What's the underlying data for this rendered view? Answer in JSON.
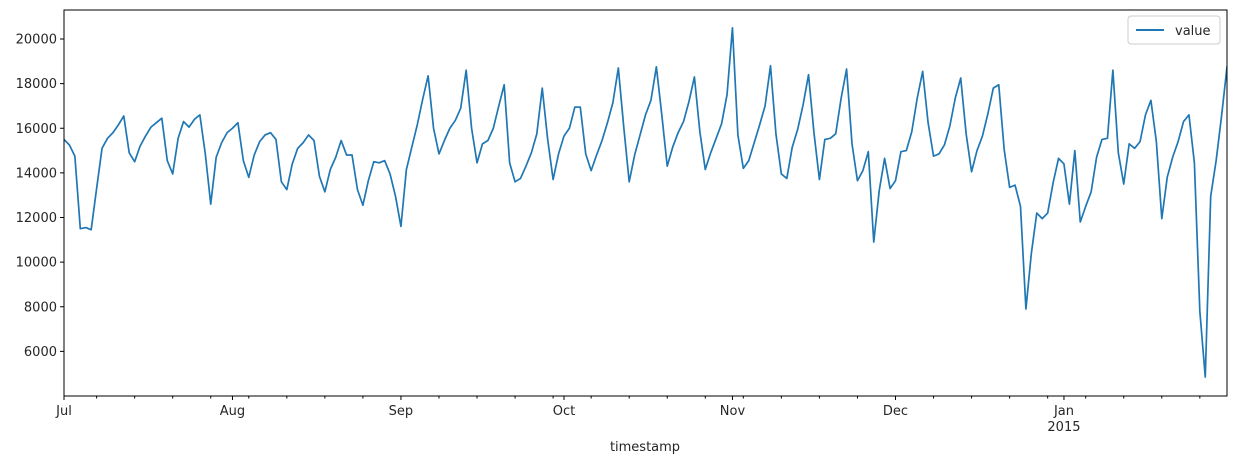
{
  "chart_data": {
    "type": "line",
    "xlabel": "timestamp",
    "ylabel": "",
    "ylim": [
      4000,
      21300
    ],
    "xlim": [
      "2014-07-01",
      "2015-01-31"
    ],
    "grid": false,
    "legend_position": "top-right",
    "line_color": "#1f77b4",
    "y_ticks": [
      6000,
      8000,
      10000,
      12000,
      14000,
      16000,
      18000,
      20000
    ],
    "x_major_ticks": [
      {
        "date": "2014-07-01",
        "label": "Jul",
        "sublabel": ""
      },
      {
        "date": "2014-08-01",
        "label": "Aug",
        "sublabel": ""
      },
      {
        "date": "2014-09-01",
        "label": "Sep",
        "sublabel": ""
      },
      {
        "date": "2014-10-01",
        "label": "Oct",
        "sublabel": ""
      },
      {
        "date": "2014-11-01",
        "label": "Nov",
        "sublabel": ""
      },
      {
        "date": "2014-12-01",
        "label": "Dec",
        "sublabel": ""
      },
      {
        "date": "2015-01-01",
        "label": "Jan",
        "sublabel": "2015"
      }
    ],
    "series": [
      {
        "name": "value",
        "color": "#1f77b4",
        "start_date": "2014-07-01",
        "values": [
          15500,
          15250,
          14750,
          11500,
          11550,
          11450,
          13300,
          15100,
          15550,
          15800,
          16150,
          16550,
          14900,
          14500,
          15200,
          15650,
          16050,
          16250,
          16450,
          14550,
          13950,
          15550,
          16300,
          16050,
          16400,
          16600,
          14850,
          12600,
          14700,
          15350,
          15800,
          16000,
          16250,
          14550,
          13800,
          14800,
          15400,
          15700,
          15800,
          15500,
          13600,
          13250,
          14400,
          15100,
          15350,
          15700,
          15450,
          13850,
          13150,
          14150,
          14700,
          15450,
          14800,
          14800,
          13250,
          12550,
          13650,
          14500,
          14450,
          14550,
          13950,
          12950,
          11600,
          14150,
          15150,
          16150,
          17300,
          18350,
          16000,
          14850,
          15450,
          16000,
          16350,
          16900,
          18600,
          16000,
          14450,
          15300,
          15450,
          16000,
          17000,
          17950,
          14450,
          13600,
          13750,
          14300,
          14900,
          15750,
          17800,
          15500,
          13700,
          14850,
          15650,
          16000,
          16950,
          16950,
          14850,
          14100,
          14800,
          15450,
          16250,
          17150,
          18700,
          16050,
          13600,
          14800,
          15700,
          16600,
          17250,
          18750,
          16600,
          14300,
          15150,
          15800,
          16300,
          17200,
          18300,
          15850,
          14150,
          14900,
          15550,
          16200,
          17500,
          20500,
          15700,
          14200,
          14550,
          15350,
          16150,
          17000,
          18800,
          15750,
          13950,
          13750,
          15150,
          15950,
          17050,
          18400,
          15800,
          13700,
          15500,
          15550,
          15750,
          17350,
          18650,
          15300,
          13650,
          14100,
          14950,
          10900,
          13200,
          14650,
          13300,
          13650,
          14950,
          15000,
          15850,
          17350,
          18550,
          16250,
          14750,
          14850,
          15250,
          16100,
          17350,
          18250,
          15750,
          14050,
          15000,
          15650,
          16650,
          17800,
          17950,
          15050,
          13350,
          13450,
          12500,
          7900,
          10400,
          12200,
          11950,
          12200,
          13550,
          14650,
          14400,
          12600,
          15000,
          11800,
          12500,
          13150,
          14700,
          15500,
          15550,
          18600,
          14900,
          13500,
          15300,
          15100,
          15400,
          16600,
          17250,
          15400,
          11950,
          13800,
          14700,
          15400,
          16300,
          16600,
          14450,
          7800,
          4850,
          12950,
          14550,
          16550,
          18750
        ]
      }
    ]
  }
}
